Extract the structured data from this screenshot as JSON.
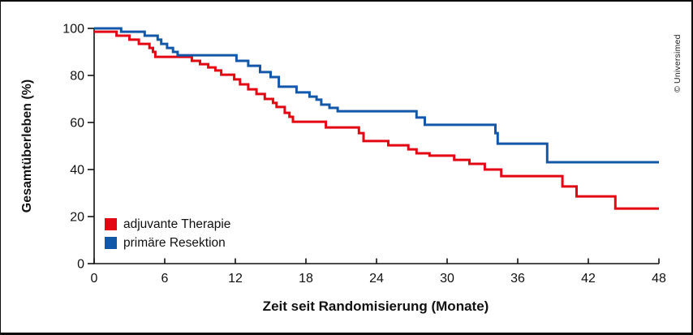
{
  "frame": {
    "copyright": "© Universimed"
  },
  "chart_data": {
    "type": "line",
    "subtype": "kaplan-meier-step",
    "title": "",
    "xlabel": "Zeit seit Randomisierung (Monate)",
    "ylabel": "Gesamtüberleben (%)",
    "xlim": [
      0,
      48
    ],
    "ylim": [
      0,
      100
    ],
    "xticks": [
      0,
      6,
      12,
      18,
      24,
      30,
      36,
      42,
      48
    ],
    "yticks": [
      0,
      20,
      40,
      60,
      80,
      100
    ],
    "grid": false,
    "legend_position": "inside-bottom-left",
    "axis_color": "#111111",
    "line_width": 3,
    "series": [
      {
        "name": "adjuvante Therapie",
        "color": "#e30613",
        "points": [
          [
            0,
            98.6
          ],
          [
            1.9,
            96.9
          ],
          [
            3.0,
            95.2
          ],
          [
            3.8,
            93.4
          ],
          [
            4.7,
            91.7
          ],
          [
            5.0,
            90.0
          ],
          [
            5.2,
            87.9
          ],
          [
            8.3,
            86.2
          ],
          [
            9.0,
            84.8
          ],
          [
            9.7,
            83.4
          ],
          [
            10.3,
            82.1
          ],
          [
            10.8,
            80.3
          ],
          [
            11.9,
            78.3
          ],
          [
            12.4,
            76.2
          ],
          [
            13.1,
            74.1
          ],
          [
            13.8,
            72.1
          ],
          [
            14.5,
            70.0
          ],
          [
            15.2,
            68.3
          ],
          [
            15.5,
            66.6
          ],
          [
            16.2,
            64.1
          ],
          [
            16.6,
            62.4
          ],
          [
            16.9,
            60.3
          ],
          [
            19.7,
            57.9
          ],
          [
            22.5,
            55.5
          ],
          [
            22.9,
            52.1
          ],
          [
            25.0,
            50.3
          ],
          [
            26.7,
            48.6
          ],
          [
            27.4,
            46.9
          ],
          [
            28.5,
            45.9
          ],
          [
            30.6,
            44.1
          ],
          [
            31.9,
            42.4
          ],
          [
            33.2,
            40.0
          ],
          [
            34.6,
            37.2
          ],
          [
            39.8,
            32.8
          ],
          [
            41.0,
            28.6
          ],
          [
            44.3,
            23.4
          ],
          [
            48,
            23.4
          ]
        ]
      },
      {
        "name": "primäre Resektion",
        "color": "#1358a8",
        "points": [
          [
            0,
            100
          ],
          [
            2.3,
            98.6
          ],
          [
            4.3,
            96.9
          ],
          [
            5.4,
            95.2
          ],
          [
            5.7,
            93.4
          ],
          [
            6.2,
            91.7
          ],
          [
            6.7,
            90.0
          ],
          [
            7.1,
            88.6
          ],
          [
            12.1,
            86.2
          ],
          [
            13.1,
            84.1
          ],
          [
            14.1,
            81.4
          ],
          [
            15.0,
            79.3
          ],
          [
            15.7,
            75.2
          ],
          [
            17.2,
            72.8
          ],
          [
            18.3,
            71.0
          ],
          [
            18.9,
            69.7
          ],
          [
            19.3,
            67.6
          ],
          [
            20.0,
            66.2
          ],
          [
            20.7,
            64.8
          ],
          [
            27.4,
            62.1
          ],
          [
            28.1,
            59.0
          ],
          [
            34.1,
            55.5
          ],
          [
            34.3,
            51.0
          ],
          [
            38.5,
            43.1
          ],
          [
            48,
            43.1
          ]
        ]
      }
    ]
  }
}
